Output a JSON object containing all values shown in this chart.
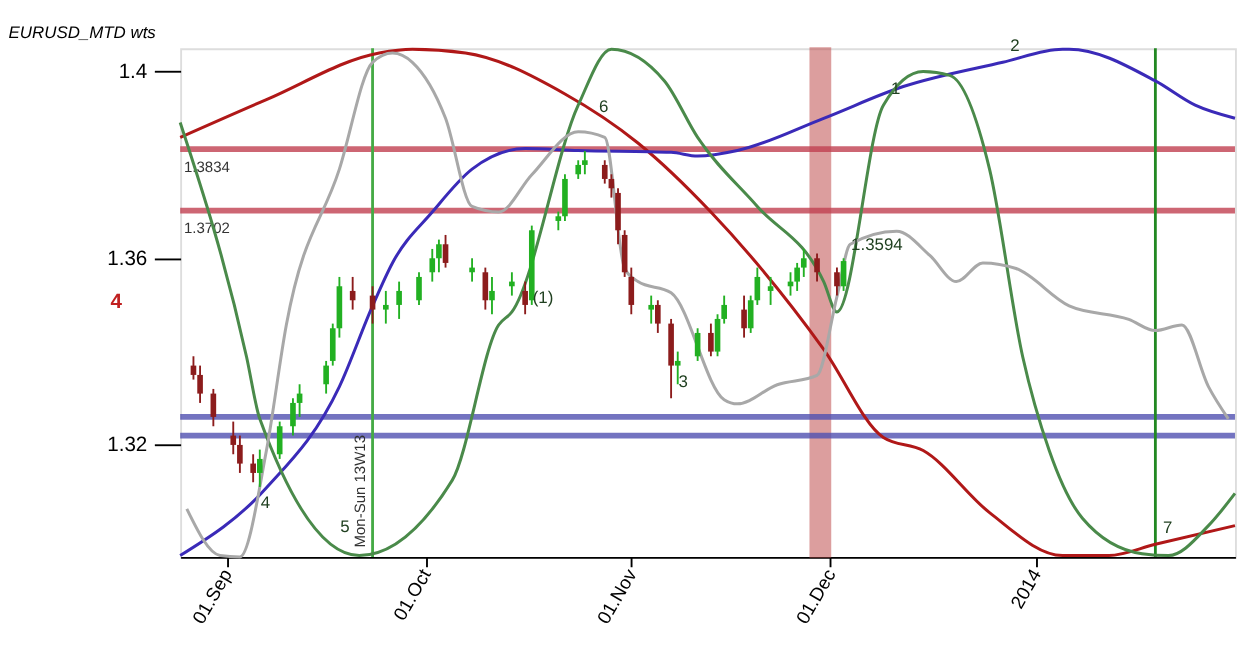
{
  "chart_data": {
    "type": "candlestick",
    "title": "EURUSD_MTD wts",
    "xlim": [
      "2013-08-25",
      "2014-01-31"
    ],
    "xticks": [
      {
        "value": "2013-09-01",
        "label": "01.Sep"
      },
      {
        "value": "2013-10-01",
        "label": "01.Oct"
      },
      {
        "value": "2013-11-01",
        "label": "01.Nov"
      },
      {
        "value": "2013-12-01",
        "label": "01.Dec"
      },
      {
        "value": "2014-01-01",
        "label": "2014"
      }
    ],
    "ylim": [
      1.296,
      1.405
    ],
    "yticks": [
      1.32,
      1.36,
      {
        "value": 1.4,
        "label": "1.4"
      }
    ],
    "grid": false,
    "series": [
      {
        "type": "line",
        "color": "#b01818",
        "x": [
          "2013-08-25",
          "2013-09-07",
          "2013-09-24",
          "2013-09-29",
          "2013-10-07",
          "2013-10-22",
          "2013-11-02",
          "2013-11-13",
          "2013-11-30",
          "2013-12-09",
          "2013-12-15",
          "2013-12-25",
          "2014-01-05",
          "2014-01-12",
          "2014-01-19",
          "2014-01-31"
        ],
        "values": [
          1.3859,
          1.394,
          1.404,
          1.4048,
          1.404,
          1.3952,
          1.3847,
          1.3699,
          1.3405,
          1.3216,
          1.3188,
          1.3055,
          1.2963,
          1.2963,
          1.2987,
          1.3027
        ]
      },
      {
        "type": "line",
        "color": "#3a2ab8",
        "x": [
          "2013-08-25",
          "2013-09-07",
          "2013-09-18",
          "2013-09-23",
          "2013-09-26",
          "2013-10-02",
          "2013-10-08",
          "2013-10-16",
          "2013-10-24",
          "2013-11-07",
          "2013-11-11",
          "2013-11-17",
          "2013-11-30",
          "2013-12-12",
          "2013-12-27",
          "2014-01-05",
          "2014-01-06",
          "2014-01-19",
          "2014-01-25",
          "2014-01-31"
        ],
        "values": [
          1.2963,
          1.3108,
          1.3325,
          1.3498,
          1.359,
          1.3699,
          1.3791,
          1.3835,
          1.3831,
          1.3827,
          1.3819,
          1.3831,
          1.39,
          1.3968,
          1.402,
          1.4048,
          1.4048,
          1.398,
          1.3928,
          1.39
        ]
      },
      {
        "type": "line",
        "color": "#4a8a4a",
        "x": [
          "2013-08-25",
          "2013-09-04",
          "2013-09-06",
          "2013-09-21",
          "2013-10-05",
          "2013-10-12",
          "2013-10-14",
          "2013-10-24",
          "2013-10-29",
          "2013-11-06",
          "2013-11-11",
          "2013-11-20",
          "2013-11-30",
          "2013-12-02",
          "2013-12-09",
          "2013-12-15",
          "2013-12-19",
          "2013-12-25",
          "2013-12-30",
          "2014-01-03",
          "2014-01-08",
          "2014-01-17",
          "2014-01-21",
          "2014-01-27",
          "2014-01-31"
        ],
        "values": [
          1.3891,
          1.3389,
          1.3256,
          1.2963,
          1.3124,
          1.3457,
          1.3485,
          1.3928,
          1.4048,
          1.398,
          1.3859,
          1.3711,
          1.355,
          1.3485,
          1.3928,
          1.4,
          1.3992,
          1.3791,
          1.3389,
          1.3188,
          1.3043,
          1.2967,
          1.2963,
          1.3027,
          1.3096
        ]
      },
      {
        "type": "line",
        "color": "#a8a8a8",
        "x": [
          "2013-08-26",
          "2013-08-31",
          "2013-09-03",
          "2013-09-07",
          "2013-09-10",
          "2013-09-18",
          "2013-09-23",
          "2013-09-26",
          "2013-09-29",
          "2013-10-04",
          "2013-10-08",
          "2013-10-12",
          "2013-10-17",
          "2013-10-24",
          "2013-10-28",
          "2013-10-31",
          "2013-11-02",
          "2013-11-07",
          "2013-11-15",
          "2013-11-17",
          "2013-11-23",
          "2013-11-29",
          "2013-12-02",
          "2013-12-04",
          "2013-12-11",
          "2013-12-16",
          "2013-12-20",
          "2013-12-24",
          "2013-12-29",
          "2014-01-06",
          "2014-01-15",
          "2014-01-19",
          "2014-01-23",
          "2014-01-27",
          "2014-01-30"
        ],
        "values": [
          1.3063,
          1.2963,
          1.296,
          1.3188,
          1.3457,
          1.3791,
          1.402,
          1.404,
          1.402,
          1.39,
          1.3711,
          1.3699,
          1.3779,
          1.3871,
          1.3859,
          1.3578,
          1.355,
          1.3526,
          1.3297,
          1.3288,
          1.3329,
          1.3349,
          1.3518,
          1.363,
          1.3658,
          1.3606,
          1.355,
          1.359,
          1.3578,
          1.3498,
          1.3469,
          1.3445,
          1.3457,
          1.3325,
          1.3256
        ]
      },
      {
        "type": "candlestick",
        "x": [
          "2013-08-27",
          "2013-08-28",
          "2013-08-30",
          "2013-09-02",
          "2013-09-03",
          "2013-09-05",
          "2013-09-06",
          "2013-09-09",
          "2013-09-11",
          "2013-09-12",
          "2013-09-16",
          "2013-09-17",
          "2013-09-18",
          "2013-09-20",
          "2013-09-23",
          "2013-09-25",
          "2013-09-27",
          "2013-09-30",
          "2013-10-02",
          "2013-10-03",
          "2013-10-04",
          "2013-10-08",
          "2013-10-10",
          "2013-10-11",
          "2013-10-14",
          "2013-10-16",
          "2013-10-17",
          "2013-10-21",
          "2013-10-22",
          "2013-10-24",
          "2013-10-25",
          "2013-10-28",
          "2013-10-29",
          "2013-10-30",
          "2013-10-31",
          "2013-11-01",
          "2013-11-04",
          "2013-11-05",
          "2013-11-07",
          "2013-11-08",
          "2013-11-11",
          "2013-11-13",
          "2013-11-14",
          "2013-11-15",
          "2013-11-18",
          "2013-11-19",
          "2013-11-20",
          "2013-11-22",
          "2013-11-25",
          "2013-11-26",
          "2013-11-27",
          "2013-11-29",
          "2013-12-02",
          "2013-12-03"
        ],
        "ohlc": [
          [
            1.337,
            1.339,
            1.334,
            1.335
          ],
          [
            1.335,
            1.337,
            1.329,
            1.331
          ],
          [
            1.331,
            1.332,
            1.324,
            1.326
          ],
          [
            1.322,
            1.325,
            1.318,
            1.32
          ],
          [
            1.32,
            1.322,
            1.314,
            1.316
          ],
          [
            1.316,
            1.318,
            1.312,
            1.314
          ],
          [
            1.314,
            1.319,
            1.311,
            1.317
          ],
          [
            1.318,
            1.325,
            1.317,
            1.324
          ],
          [
            1.324,
            1.33,
            1.322,
            1.329
          ],
          [
            1.329,
            1.333,
            1.326,
            1.331
          ],
          [
            1.333,
            1.338,
            1.331,
            1.337
          ],
          [
            1.338,
            1.346,
            1.337,
            1.345
          ],
          [
            1.345,
            1.356,
            1.343,
            1.354
          ],
          [
            1.353,
            1.356,
            1.349,
            1.351
          ],
          [
            1.352,
            1.354,
            1.346,
            1.349
          ],
          [
            1.349,
            1.353,
            1.346,
            1.35
          ],
          [
            1.35,
            1.355,
            1.347,
            1.353
          ],
          [
            1.351,
            1.357,
            1.35,
            1.356
          ],
          [
            1.357,
            1.362,
            1.355,
            1.36
          ],
          [
            1.36,
            1.364,
            1.357,
            1.363
          ],
          [
            1.363,
            1.365,
            1.358,
            1.359
          ],
          [
            1.357,
            1.36,
            1.355,
            1.358
          ],
          [
            1.357,
            1.358,
            1.349,
            1.351
          ],
          [
            1.351,
            1.356,
            1.348,
            1.353
          ],
          [
            1.354,
            1.357,
            1.352,
            1.355
          ],
          [
            1.353,
            1.355,
            1.348,
            1.35
          ],
          [
            1.351,
            1.367,
            1.35,
            1.366
          ],
          [
            1.368,
            1.37,
            1.366,
            1.369
          ],
          [
            1.369,
            1.378,
            1.368,
            1.377
          ],
          [
            1.378,
            1.381,
            1.377,
            1.38
          ],
          [
            1.38,
            1.383,
            1.378,
            1.381
          ],
          [
            1.38,
            1.381,
            1.376,
            1.377
          ],
          [
            1.377,
            1.378,
            1.373,
            1.375
          ],
          [
            1.374,
            1.375,
            1.363,
            1.366
          ],
          [
            1.365,
            1.366,
            1.356,
            1.357
          ],
          [
            1.356,
            1.358,
            1.348,
            1.35
          ],
          [
            1.349,
            1.352,
            1.346,
            1.35
          ],
          [
            1.35,
            1.351,
            1.344,
            1.346
          ],
          [
            1.346,
            1.347,
            1.33,
            1.337
          ],
          [
            1.337,
            1.34,
            1.333,
            1.338
          ],
          [
            1.339,
            1.345,
            1.338,
            1.344
          ],
          [
            1.344,
            1.346,
            1.339,
            1.34
          ],
          [
            1.34,
            1.348,
            1.339,
            1.347
          ],
          [
            1.347,
            1.352,
            1.346,
            1.35
          ],
          [
            1.349,
            1.352,
            1.343,
            1.345
          ],
          [
            1.345,
            1.352,
            1.344,
            1.351
          ],
          [
            1.351,
            1.358,
            1.35,
            1.356
          ],
          [
            1.353,
            1.356,
            1.35,
            1.354
          ],
          [
            1.354,
            1.357,
            1.352,
            1.355
          ],
          [
            1.355,
            1.359,
            1.353,
            1.358
          ],
          [
            1.358,
            1.362,
            1.356,
            1.36
          ],
          [
            1.36,
            1.361,
            1.355,
            1.357
          ],
          [
            1.357,
            1.358,
            1.352,
            1.354
          ],
          [
            1.354,
            1.36,
            1.353,
            1.3594
          ]
        ],
        "colors": [
          "#8c1c1c",
          "#8c1c1c",
          "#8c1c1c",
          "#8c1c1c",
          "#8c1c1c",
          "#8c1c1c",
          "#22b022",
          "#22b022",
          "#22b022",
          "#22b022",
          "#22b022",
          "#22b022",
          "#22b022",
          "#8c1c1c",
          "#8c1c1c",
          "#22b022",
          "#22b022",
          "#22b022",
          "#22b022",
          "#22b022",
          "#8c1c1c",
          "#22b022",
          "#8c1c1c",
          "#22b022",
          "#22b022",
          "#8c1c1c",
          "#22b022",
          "#22b022",
          "#22b022",
          "#22b022",
          "#22b022",
          "#8c1c1c",
          "#8c1c1c",
          "#8c1c1c",
          "#8c1c1c",
          "#8c1c1c",
          "#22b022",
          "#8c1c1c",
          "#8c1c1c",
          "#22b022",
          "#22b022",
          "#8c1c1c",
          "#22b022",
          "#22b022",
          "#8c1c1c",
          "#22b022",
          "#22b022",
          "#22b022",
          "#22b022",
          "#22b022",
          "#22b022",
          "#8c1c1c",
          "#8c1c1c",
          "#22b022"
        ]
      }
    ],
    "ref_lines": [
      {
        "axis": "y",
        "value": 1.3834,
        "label": "1.3834",
        "color": "#c04050"
      },
      {
        "axis": "y",
        "value": 1.3702,
        "label": "1.3702",
        "color": "#c04050"
      },
      {
        "axis": "y",
        "value": 1.326,
        "label": null,
        "color": "#5050b0"
      },
      {
        "axis": "y",
        "value": 1.322,
        "label": null,
        "color": "#5050b0"
      },
      {
        "axis": "x",
        "value": "2013-09-23",
        "label": "Mon-Sun 13W13",
        "color": "#44aa44"
      },
      {
        "axis": "x",
        "value": "2014-01-19",
        "label": null,
        "color": "#228822"
      }
    ],
    "bands": [
      {
        "axis": "x",
        "from": "2013-11-28",
        "to": "2013-12-01",
        "label": null,
        "color": "#c05050"
      }
    ],
    "annotations": [
      {
        "text": "1.3594",
        "x": "2013-12-03",
        "y": 1.3594
      },
      {
        "text": "(1)",
        "x": "2013-10-16",
        "y": 1.348
      },
      {
        "text": "2",
        "x": "2013-12-27",
        "y": 1.402
      },
      {
        "text": "6",
        "x": "2013-10-26",
        "y": 1.389
      },
      {
        "text": "1",
        "x": "2013-12-09",
        "y": 1.3928
      },
      {
        "text": "3",
        "x": "2013-11-07",
        "y": 1.33
      },
      {
        "text": "4",
        "x": "2013-09-05",
        "y": 1.304
      },
      {
        "text": "5",
        "x": "2013-09-17",
        "y": 1.299
      },
      {
        "text": "7",
        "x": "2014-01-19",
        "y": 1.2987
      },
      "4"
    ]
  }
}
